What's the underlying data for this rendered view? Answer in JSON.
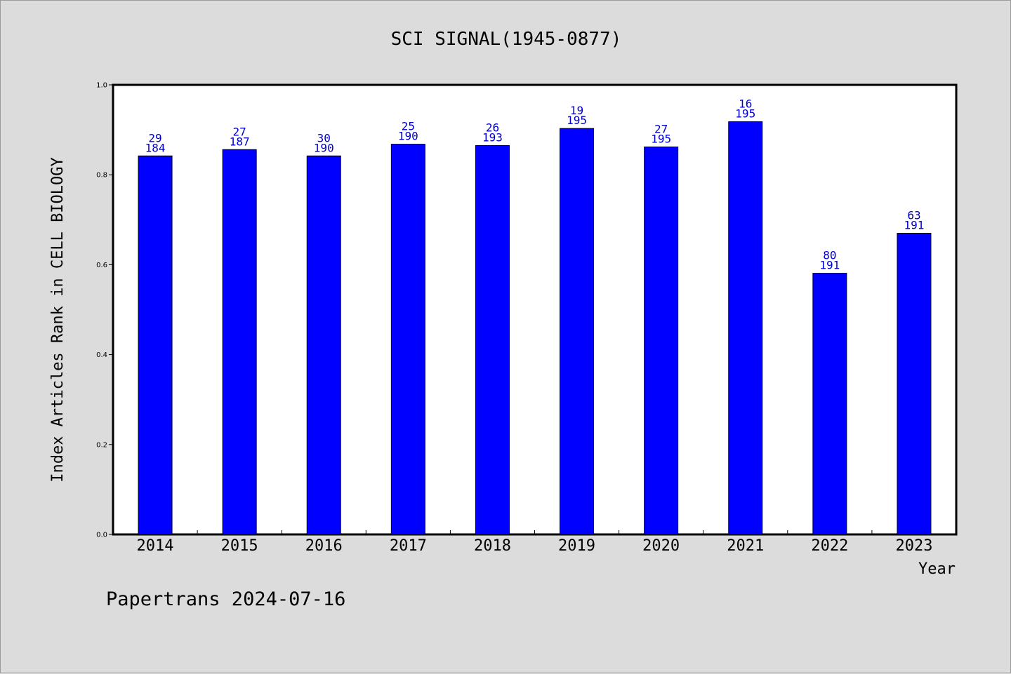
{
  "chart_data": {
    "type": "bar",
    "title": "SCI SIGNAL(1945-0877)",
    "xlabel": "Year",
    "ylabel": "Index Articles Rank in CELL BIOLOGY",
    "ylim": [
      0,
      1.0
    ],
    "yticks": [
      "0.0",
      "0.2",
      "0.4",
      "0.6",
      "0.8",
      "1.0"
    ],
    "categories": [
      "2014",
      "2015",
      "2016",
      "2017",
      "2018",
      "2019",
      "2020",
      "2021",
      "2022",
      "2023"
    ],
    "values": [
      0.842,
      0.856,
      0.842,
      0.868,
      0.865,
      0.903,
      0.862,
      0.918,
      0.581,
      0.67
    ],
    "ranks": [
      "29",
      "27",
      "30",
      "25",
      "26",
      "19",
      "27",
      "16",
      "80",
      "63"
    ],
    "totals": [
      "184",
      "187",
      "190",
      "190",
      "193",
      "195",
      "195",
      "195",
      "191",
      "191"
    ],
    "bar_color": "#0000ff",
    "label_color": "#0000cc",
    "grid": false
  },
  "footer": {
    "text": "Papertrans 2024-07-16"
  }
}
